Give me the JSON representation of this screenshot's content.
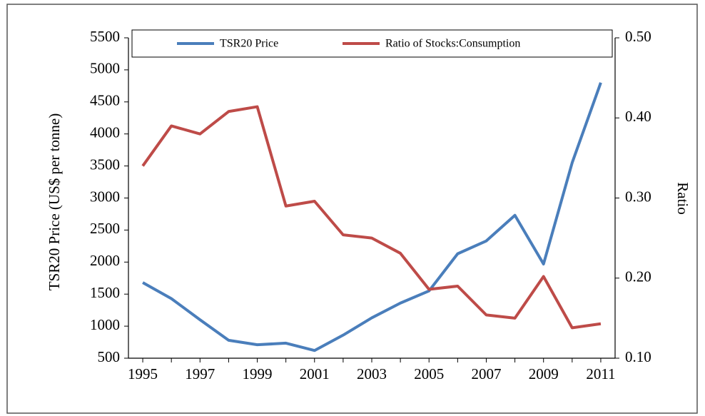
{
  "chart_data": {
    "type": "line",
    "categories": [
      "1995",
      null,
      "1997",
      null,
      "1999",
      null,
      "2001",
      null,
      "2003",
      null,
      "2005",
      null,
      "2007",
      null,
      "2009",
      null,
      "2011"
    ],
    "y_label": "TSR20 Price  (US$ per tonne)",
    "y2_label": "Ratio",
    "ylim": [
      500,
      5500
    ],
    "yticks": [
      500,
      1000,
      1500,
      2000,
      2500,
      3000,
      3500,
      4000,
      4500,
      5000,
      5500
    ],
    "y2lim": [
      0.1,
      0.5
    ],
    "y2ticks": [
      {
        "value": 0.1,
        "label": "0.10"
      },
      {
        "value": 0.2,
        "label": "0.20"
      },
      {
        "value": 0.3,
        "label": "0.30"
      },
      {
        "value": 0.4,
        "label": "0.40"
      },
      {
        "value": 0.5,
        "label": "0.50"
      }
    ],
    "legend": "top",
    "series": [
      {
        "name": "TSR20 Price",
        "color": "#4a7ebb",
        "values": [
          1680,
          1430,
          1100,
          780,
          710,
          735,
          620,
          860,
          1130,
          1360,
          1550,
          2130,
          2330,
          2730,
          1970,
          3550,
          4800
        ]
      },
      {
        "name": "Ratio of Stocks:Consumption",
        "color": "#be4b48",
        "axis": "y2",
        "values": [
          0.34,
          0.39,
          0.38,
          0.408,
          0.414,
          0.29,
          0.296,
          0.254,
          0.25,
          0.231,
          0.186,
          0.19,
          0.154,
          0.15,
          0.202,
          0.138,
          0.143
        ]
      }
    ]
  }
}
